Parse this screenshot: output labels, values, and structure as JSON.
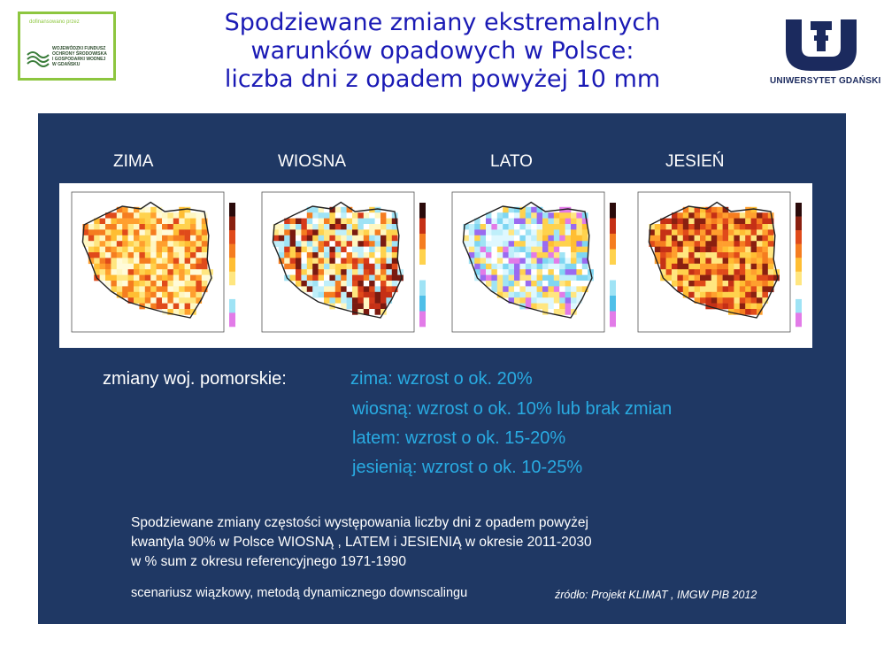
{
  "funding_logo": {
    "header": "dofinansowano przez",
    "text": "WOJEWÓDZKI FUNDUSZ\nOCHRONY ŚRODOWISKA\nI GOSPODARKI WODNEJ\nW GDAŃSKU"
  },
  "title": {
    "line1": "Spodziewane zmiany ekstremalnych",
    "line2": "warunków opadowych w Polsce:",
    "line3": "liczba dni z opadem powyżej 10 mm"
  },
  "university_logo": {
    "name": "UNIWERSYTET GDAŃSKI"
  },
  "seasons": [
    "ZIMA",
    "WIOSNA",
    "LATO",
    "JESIEŃ"
  ],
  "maps": [
    {
      "season": "winter",
      "dominant": "warm"
    },
    {
      "season": "spring",
      "dominant": "mixed"
    },
    {
      "season": "summer",
      "dominant": "cool"
    },
    {
      "season": "autumn",
      "dominant": "hot"
    }
  ],
  "changes": {
    "label": "zmiany woj. pomorskie:",
    "items": [
      "zima: wzrost o ok. 20%",
      "wiosną: wzrost o ok. 10% lub brak zmian",
      "latem:  wzrost o ok. 15-20%",
      "jesienią: wzrost o ok. 10-25%"
    ]
  },
  "description": {
    "line1": "Spodziewane zmiany częstości występowania  liczby dni z opadem powyżej",
    "line2": "kwantyla  90% w Polsce WIOSNĄ , LATEM i JESIENIĄ w okresie 2011-2030",
    "line3": "w % sum z okresu referencyjnego 1971-1990",
    "scenario": "scenariusz wiązkowy, metodą dynamicznego downscalingu",
    "source": "źródło: Projekt KLIMAT , IMGW PIB 2012"
  },
  "colors": {
    "panel": "#1f3864",
    "title": "#1a1ab5",
    "accent_text": "#29abe2",
    "ug_blue": "#1b2a5e"
  }
}
